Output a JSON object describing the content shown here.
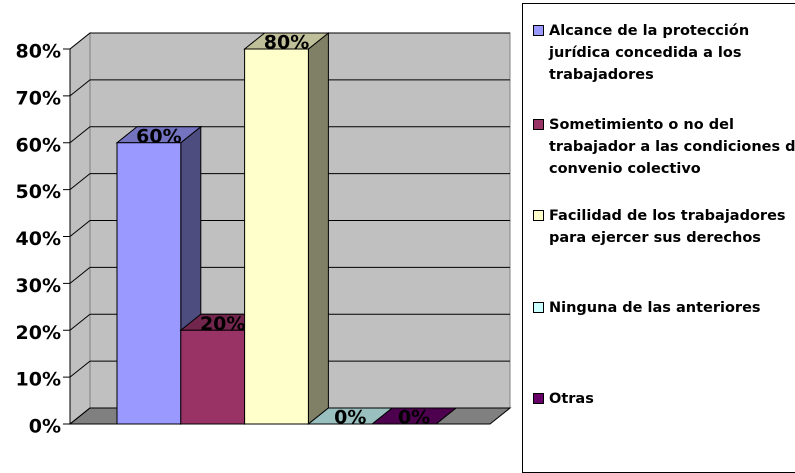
{
  "chart_data": {
    "type": "bar3d",
    "categories": [
      null
    ],
    "series": [
      {
        "name": "Alcance de la protección jurídica concedida a los trabajadores",
        "color": "#9999ff",
        "values": [
          60
        ],
        "value_labels": [
          "60%"
        ]
      },
      {
        "name": "Sometimiento o no del trabajador a las condiciones del convenio colectivo",
        "color": "#993366",
        "values": [
          20
        ],
        "value_labels": [
          "20%"
        ]
      },
      {
        "name": "Facilidad de los trabajadores para ejercer sus derechos",
        "color": "#ffffcc",
        "values": [
          80
        ],
        "value_labels": [
          "80%"
        ]
      },
      {
        "name": "Ninguna de las anteriores",
        "color": "#ccffff",
        "values": [
          0
        ],
        "value_labels": [
          "0%"
        ]
      },
      {
        "name": "Otras",
        "color": "#660066",
        "values": [
          0
        ],
        "value_labels": [
          "0%"
        ]
      }
    ],
    "ylim": [
      0,
      80
    ],
    "yticks": [
      {
        "value": 0,
        "label": "0%"
      },
      {
        "value": 10,
        "label": "10%"
      },
      {
        "value": 20,
        "label": "20%"
      },
      {
        "value": 30,
        "label": "30%"
      },
      {
        "value": 40,
        "label": "40%"
      },
      {
        "value": 50,
        "label": "50%"
      },
      {
        "value": 60,
        "label": "60%"
      },
      {
        "value": 70,
        "label": "70%"
      },
      {
        "value": 80,
        "label": "80%"
      }
    ],
    "grid": true,
    "legend": "right"
  }
}
